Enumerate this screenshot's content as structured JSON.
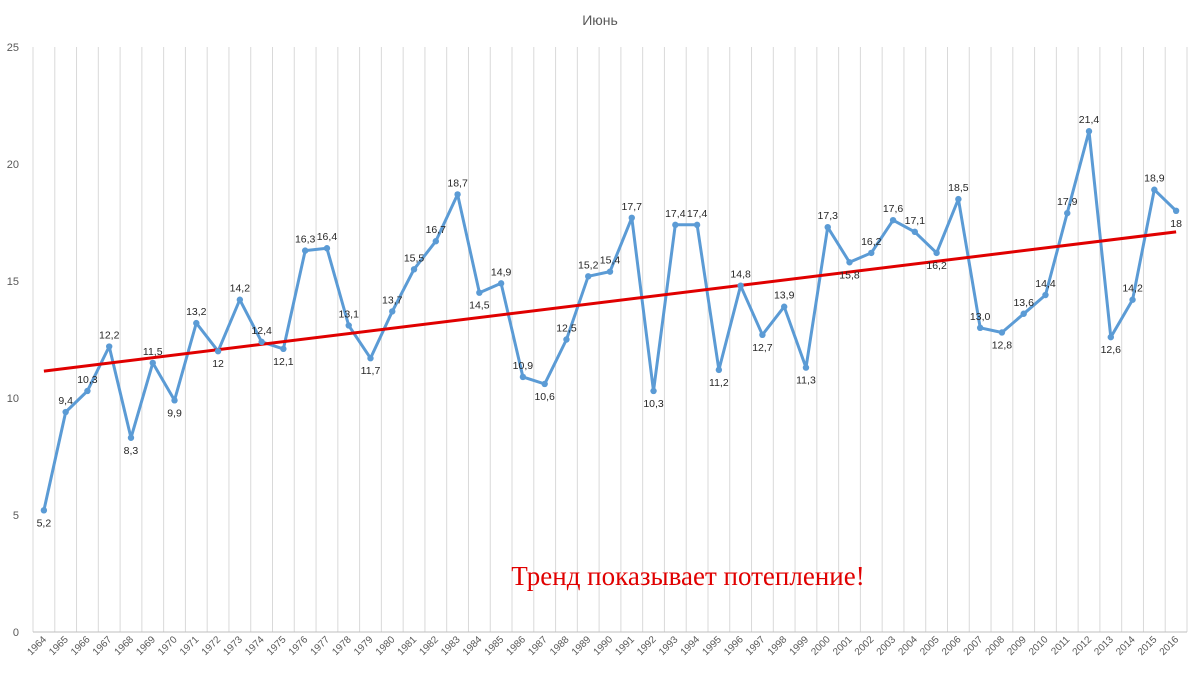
{
  "chart_data": {
    "type": "line",
    "title": "Июнь",
    "xlabel": "",
    "ylabel": "",
    "ylim": [
      0,
      25
    ],
    "yticks": [
      "0",
      "5",
      "10",
      "15",
      "20",
      "25"
    ],
    "grid": "vertical",
    "x": [
      "1964",
      "1965",
      "1966",
      "1967",
      "1968",
      "1969",
      "1970",
      "1971",
      "1972",
      "1973",
      "1974",
      "1975",
      "1976",
      "1977",
      "1978",
      "1979",
      "1980",
      "1981",
      "1982",
      "1983",
      "1984",
      "1985",
      "1986",
      "1987",
      "1988",
      "1989",
      "1990",
      "1991",
      "1992",
      "1993",
      "1994",
      "1995",
      "1996",
      "1997",
      "1998",
      "1999",
      "2000",
      "2001",
      "2002",
      "2003",
      "2004",
      "2005",
      "2006",
      "2007",
      "2008",
      "2009",
      "2010",
      "2011",
      "2012",
      "2013",
      "2014",
      "2015",
      "2016"
    ],
    "series": [
      {
        "values": [
          5.2,
          9.4,
          10.3,
          12.2,
          8.3,
          11.5,
          9.9,
          13.2,
          12,
          14.2,
          12.4,
          12.1,
          16.3,
          16.4,
          13.1,
          11.7,
          13.7,
          15.5,
          16.7,
          18.7,
          14.5,
          14.9,
          10.9,
          10.6,
          12.5,
          15.2,
          15.4,
          17.7,
          10.3,
          17.4,
          17.4,
          11.2,
          14.8,
          12.7,
          13.9,
          11.3,
          17.3,
          15.8,
          16.2,
          17.6,
          17.1,
          16.2,
          18.5,
          13.0,
          12.8,
          13.6,
          14.4,
          17.9,
          21.4,
          12.6,
          14.2,
          18.9,
          18
        ],
        "labels": [
          "5,2",
          "9,4",
          "10,3",
          "12,2",
          "8,3",
          "11,5",
          "9,9",
          "13,2",
          "12",
          "14,2",
          "12,4",
          "12,1",
          "16,3",
          "16,4",
          "13,1",
          "11,7",
          "13,7",
          "15,5",
          "16,7",
          "18,7",
          "14,5",
          "14,9",
          "10,9",
          "10,6",
          "12,5",
          "15,2",
          "15,4",
          "17,7",
          "10,3",
          "17,4",
          "17,4",
          "11,2",
          "14,8",
          "12,7",
          "13,9",
          "11,3",
          "17,3",
          "15,8",
          "16,2",
          "17,6",
          "17,1",
          "16,2",
          "18,5",
          "13,0",
          "12,8",
          "13,6",
          "14,4",
          "17,9",
          "21,4",
          "12,6",
          "14,2",
          "18,9",
          "18"
        ],
        "color": "#5b9bd5"
      }
    ],
    "trendline": {
      "start": 11.15,
      "end": 17.1,
      "color": "#e00000"
    },
    "annotation": {
      "text": "Тренд показывает потепление!",
      "color": "#e00000"
    }
  }
}
